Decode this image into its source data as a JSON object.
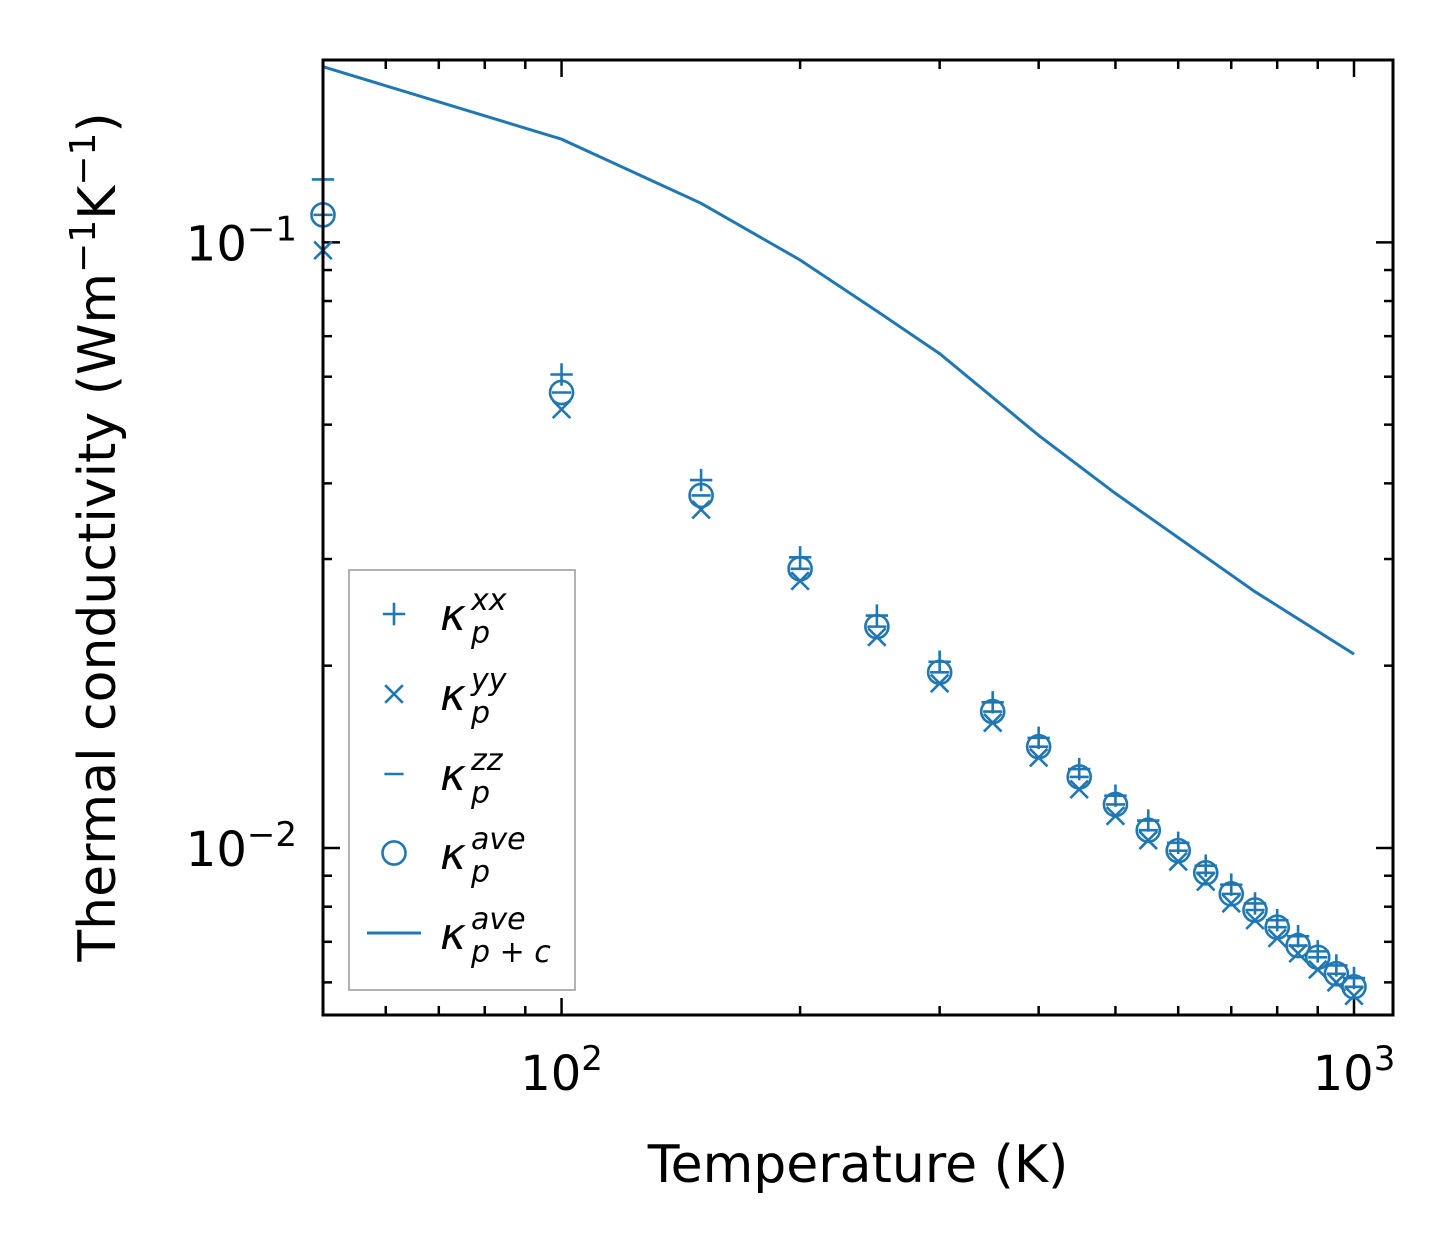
{
  "chart_data": {
    "type": "scatter",
    "xscale": "log",
    "yscale": "log",
    "xlabel": "Temperature (K)",
    "ylabel": {
      "main": "Thermal conductivity (Wm",
      "exp1": "−1",
      "mid": "K",
      "exp2": "−1",
      "end": ")"
    },
    "xlim": [
      50,
      1120
    ],
    "ylim": [
      0.0053,
      0.2
    ],
    "xticks": [
      {
        "value": 100,
        "base": "10",
        "exp": "2"
      },
      {
        "value": 1000,
        "base": "10",
        "exp": "3"
      }
    ],
    "yticks": [
      {
        "value": 0.1,
        "base": "10",
        "exp": "−1"
      },
      {
        "value": 0.01,
        "base": "10",
        "exp": "−2"
      }
    ],
    "x": [
      50,
      100,
      150,
      200,
      250,
      300,
      350,
      400,
      450,
      500,
      550,
      600,
      650,
      700,
      750,
      800,
      850,
      900,
      950,
      1000
    ],
    "series": [
      {
        "name": "kxx",
        "marker": "plus",
        "values": [
          0.127,
          0.0605,
          0.0405,
          0.0302,
          0.0242,
          0.0203,
          0.0174,
          0.0152,
          0.0135,
          0.0122,
          0.0111,
          0.0102,
          0.00935,
          0.0087,
          0.0081,
          0.0076,
          0.00715,
          0.00675,
          0.0064,
          0.0061
        ]
      },
      {
        "name": "kyy",
        "marker": "x",
        "values": [
          0.097,
          0.053,
          0.0362,
          0.0276,
          0.0223,
          0.0187,
          0.0161,
          0.0141,
          0.0125,
          0.0113,
          0.0103,
          0.0095,
          0.0088,
          0.0081,
          0.0076,
          0.0071,
          0.0067,
          0.0063,
          0.006,
          0.0057
        ]
      },
      {
        "name": "kzz",
        "marker": "hline",
        "values": [
          0.111,
          0.0565,
          0.0382,
          0.0289,
          0.0232,
          0.0195,
          0.0168,
          0.0147,
          0.0131,
          0.0118,
          0.0107,
          0.0099,
          0.0091,
          0.0084,
          0.0079,
          0.0074,
          0.0069,
          0.0066,
          0.0062,
          0.0059
        ]
      },
      {
        "name": "kave",
        "marker": "circle",
        "values": [
          0.111,
          0.0565,
          0.0382,
          0.0289,
          0.0232,
          0.0195,
          0.0168,
          0.0147,
          0.0131,
          0.0118,
          0.0107,
          0.0099,
          0.0091,
          0.0084,
          0.0079,
          0.0074,
          0.0069,
          0.0066,
          0.0062,
          0.0059
        ]
      },
      {
        "name": "kave_pc",
        "marker": "line",
        "x": [
          50,
          100,
          150,
          200,
          250,
          300,
          400,
          500,
          750,
          1000
        ],
        "values": [
          0.195,
          0.148,
          0.116,
          0.0935,
          0.077,
          0.0655,
          0.048,
          0.0385,
          0.0265,
          0.0209
        ]
      }
    ],
    "legend": {
      "position": "lower-left",
      "entries": [
        {
          "marker": "plus",
          "sym": "κ",
          "sup": "xx",
          "sub": "p"
        },
        {
          "marker": "x",
          "sym": "κ",
          "sup": "yy",
          "sub": "p"
        },
        {
          "marker": "hline",
          "sym": "κ",
          "sup": "zz",
          "sub": "p"
        },
        {
          "marker": "circle",
          "sym": "κ",
          "sup": "ave",
          "sub": "p"
        },
        {
          "marker": "line",
          "sym": "κ",
          "sup": "ave",
          "sub": "p + c"
        }
      ]
    },
    "grid": false,
    "color": "#1f77b4"
  }
}
